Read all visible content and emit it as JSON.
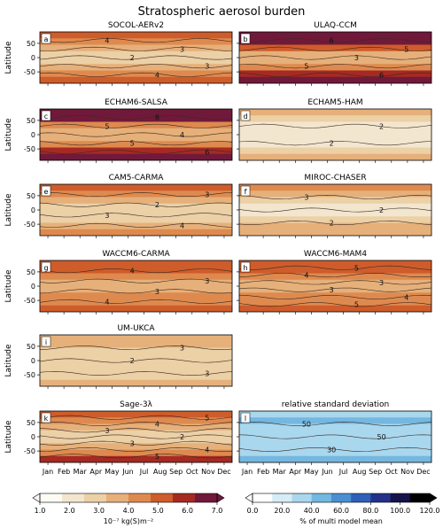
{
  "title": "Stratospheric aerosol burden",
  "months": [
    "Jan",
    "Feb",
    "Mar",
    "Apr",
    "May",
    "Jun",
    "Jul",
    "Aug",
    "Sep",
    "Oct",
    "Nov",
    "Dec"
  ],
  "ylabel": "Latitude",
  "lat_ticks": [
    50,
    0,
    -50
  ],
  "colors": {
    "burden_scale": [
      "#fdfbf4",
      "#f3e6cf",
      "#ecd0a6",
      "#e6b07a",
      "#de8a4f",
      "#cf5c2b",
      "#a62a23",
      "#71193a"
    ],
    "sd_scale": [
      "#ffffff",
      "#d6ecf6",
      "#a9d7ee",
      "#74b7e0",
      "#4a8fd2",
      "#2f5fb8",
      "#24308c",
      "#15134a",
      "#000000"
    ]
  },
  "colorbars": [
    {
      "label": "10⁻⁷ kg(S)m⁻²",
      "ticks": [
        "1.0",
        "2.0",
        "3.0",
        "4.0",
        "5.0",
        "6.0",
        "7.0"
      ],
      "scale": "burden_scale"
    },
    {
      "label": "% of multi model mean",
      "ticks": [
        "0.0",
        "20.0",
        "40.0",
        "60.0",
        "80.0",
        "100.0",
        "120.0"
      ],
      "scale": "sd_scale"
    }
  ],
  "chart_data": [
    {
      "type": "heatmap",
      "panel": "a",
      "title": "SOCOL-AERv2",
      "scale": "burden_scale",
      "rows": [
        5,
        4,
        3,
        2,
        2,
        3,
        4,
        5
      ],
      "contours": [
        "4",
        "3",
        "2",
        "3",
        "4"
      ]
    },
    {
      "type": "heatmap",
      "panel": "b",
      "title": "ULAQ-CCM",
      "scale": "burden_scale",
      "rows": [
        8,
        7,
        5,
        3,
        3,
        4,
        6,
        8
      ],
      "contours": [
        "6",
        "5",
        "3",
        "5",
        "6"
      ]
    },
    {
      "type": "heatmap",
      "panel": "c",
      "title": "ECHAM6-SALSA",
      "scale": "burden_scale",
      "rows": [
        8,
        7,
        4,
        3,
        3,
        4,
        6,
        7
      ],
      "contours": [
        "8",
        "5",
        "4",
        "5",
        "6"
      ]
    },
    {
      "type": "heatmap",
      "panel": "d",
      "title": "ECHAM5-HAM",
      "scale": "burden_scale",
      "rows": [
        3,
        2,
        1,
        1,
        1,
        1,
        2,
        3
      ],
      "contours": [
        "2",
        "2"
      ]
    },
    {
      "type": "heatmap",
      "panel": "e",
      "title": "CAM5-CARMA",
      "scale": "burden_scale",
      "rows": [
        5,
        4,
        3,
        2,
        2,
        2,
        3,
        4
      ],
      "contours": [
        "3",
        "2",
        "3",
        "4"
      ]
    },
    {
      "type": "heatmap",
      "panel": "f",
      "title": "MIROC-CHASER",
      "scale": "burden_scale",
      "rows": [
        4,
        3,
        2,
        1,
        1,
        2,
        3,
        3
      ],
      "contours": [
        "3",
        "2",
        "2"
      ]
    },
    {
      "type": "heatmap",
      "panel": "g",
      "title": "WACCM6-CARMA",
      "scale": "burden_scale",
      "rows": [
        5,
        5,
        4,
        3,
        3,
        4,
        4,
        5
      ],
      "contours": [
        "4",
        "3",
        "3",
        "4"
      ]
    },
    {
      "type": "heatmap",
      "panel": "h",
      "title": "WACCM6-MAM4",
      "scale": "burden_scale",
      "rows": [
        5,
        5,
        4,
        3,
        3,
        4,
        4,
        5
      ],
      "contours": [
        "5",
        "4",
        "3",
        "3",
        "4",
        "5"
      ]
    },
    {
      "type": "heatmap",
      "panel": "i",
      "title": "UM-UKCA",
      "scale": "burden_scale",
      "rows": [
        3,
        3,
        2,
        2,
        2,
        2,
        2,
        3
      ],
      "contours": [
        "3",
        "2",
        "3"
      ]
    },
    {
      "type": "heatmap",
      "panel": "k",
      "title": "Sage-3λ",
      "scale": "burden_scale",
      "rows": [
        5,
        4,
        3,
        2,
        2,
        3,
        4,
        6
      ],
      "contours": [
        "5",
        "4",
        "3",
        "2",
        "3",
        "4",
        "5"
      ]
    },
    {
      "type": "heatmap",
      "panel": "l",
      "title": "relative standard deviation",
      "scale": "sd_scale",
      "rows": [
        2,
        3,
        2,
        2,
        2,
        2,
        2,
        3
      ],
      "contours": [
        "50",
        "50",
        "30"
      ]
    }
  ]
}
